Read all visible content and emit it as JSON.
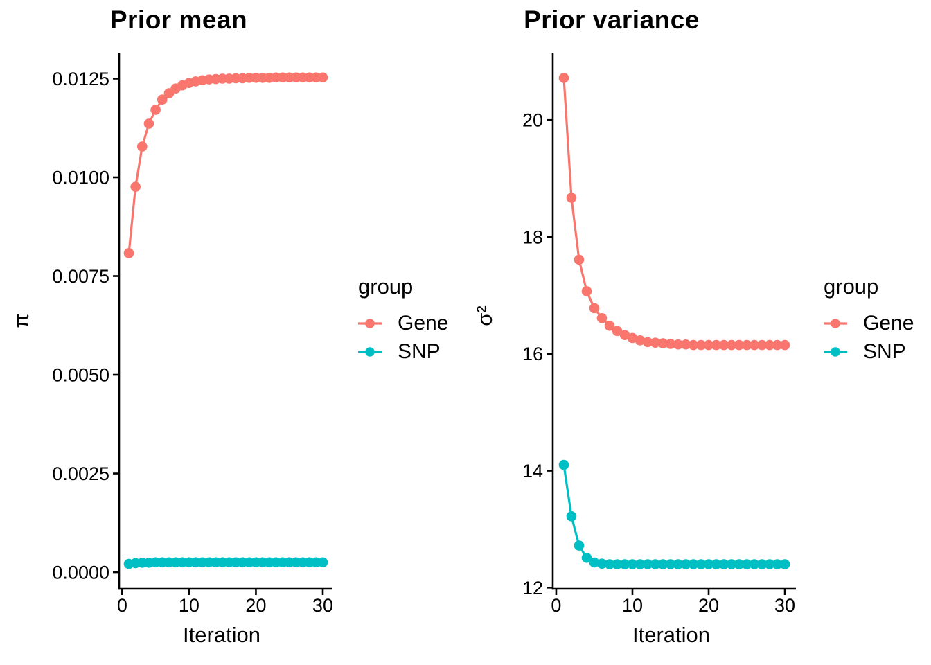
{
  "page": {
    "background": "#ffffff",
    "text_color": "#000000"
  },
  "chart_data": [
    {
      "type": "line",
      "title": "Prior mean",
      "xlabel": "Iteration",
      "ylabel": "π",
      "legend_title": "group",
      "legend_position": "right",
      "grid": false,
      "xlim": [
        -0.45,
        31.45
      ],
      "ylim": [
        -0.00042,
        0.01314
      ],
      "x_ticks": [
        {
          "v": 0,
          "label": "0"
        },
        {
          "v": 10,
          "label": "10"
        },
        {
          "v": 20,
          "label": "20"
        },
        {
          "v": 30,
          "label": "30"
        }
      ],
      "y_ticks": [
        {
          "v": 0.0125,
          "label": "0.0125"
        },
        {
          "v": 0.01,
          "label": "0.0100"
        },
        {
          "v": 0.0075,
          "label": "0.0075"
        },
        {
          "v": 0.005,
          "label": "0.0050"
        },
        {
          "v": 0.0025,
          "label": "0.0025"
        },
        {
          "v": 0.0,
          "label": "0.0000"
        }
      ],
      "series": [
        {
          "name": "Gene",
          "color": "#F8766D",
          "x": [
            1,
            2,
            3,
            4,
            5,
            6,
            7,
            8,
            9,
            10,
            11,
            12,
            13,
            14,
            15,
            16,
            17,
            18,
            19,
            20,
            21,
            22,
            23,
            24,
            25,
            26,
            27,
            28,
            29,
            30
          ],
          "values": [
            0.00808,
            0.00976,
            0.01078,
            0.01136,
            0.01171,
            0.01197,
            0.01213,
            0.01225,
            0.01233,
            0.01239,
            0.01243,
            0.01246,
            0.01248,
            0.01249,
            0.0125,
            0.0125,
            0.01251,
            0.01251,
            0.01252,
            0.01252,
            0.01252,
            0.01252,
            0.01253,
            0.01253,
            0.01253,
            0.01253,
            0.01253,
            0.01253,
            0.01253,
            0.01253
          ]
        },
        {
          "name": "SNP",
          "color": "#00BFC4",
          "x": [
            1,
            2,
            3,
            4,
            5,
            6,
            7,
            8,
            9,
            10,
            11,
            12,
            13,
            14,
            15,
            16,
            17,
            18,
            19,
            20,
            21,
            22,
            23,
            24,
            25,
            26,
            27,
            28,
            29,
            30
          ],
          "values": [
            0.00021,
            0.00023,
            0.00024,
            0.00024,
            0.00025,
            0.00025,
            0.00025,
            0.00025,
            0.00025,
            0.00025,
            0.00025,
            0.00025,
            0.00025,
            0.00025,
            0.00025,
            0.00025,
            0.00025,
            0.00025,
            0.00025,
            0.00025,
            0.00025,
            0.00025,
            0.00025,
            0.00025,
            0.00025,
            0.00025,
            0.00025,
            0.00025,
            0.00025,
            0.00025
          ]
        }
      ]
    },
    {
      "type": "line",
      "title": "Prior variance",
      "xlabel": "Iteration",
      "ylabel": "σ²",
      "legend_title": "group",
      "legend_position": "right",
      "grid": false,
      "xlim": [
        -0.45,
        31.45
      ],
      "ylim": [
        11.98,
        21.14
      ],
      "x_ticks": [
        {
          "v": 0,
          "label": "0"
        },
        {
          "v": 10,
          "label": "10"
        },
        {
          "v": 20,
          "label": "20"
        },
        {
          "v": 30,
          "label": "30"
        }
      ],
      "y_ticks": [
        {
          "v": 20,
          "label": "20"
        },
        {
          "v": 18,
          "label": "18"
        },
        {
          "v": 16,
          "label": "16"
        },
        {
          "v": 14,
          "label": "14"
        },
        {
          "v": 12,
          "label": "12"
        }
      ],
      "series": [
        {
          "name": "Gene",
          "color": "#F8766D",
          "x": [
            1,
            2,
            3,
            4,
            5,
            6,
            7,
            8,
            9,
            10,
            11,
            12,
            13,
            14,
            15,
            16,
            17,
            18,
            19,
            20,
            21,
            22,
            23,
            24,
            25,
            26,
            27,
            28,
            29,
            30
          ],
          "values": [
            20.72,
            18.67,
            17.61,
            17.07,
            16.78,
            16.61,
            16.48,
            16.39,
            16.32,
            16.27,
            16.23,
            16.2,
            16.19,
            16.18,
            16.17,
            16.16,
            16.16,
            16.15,
            16.15,
            16.15,
            16.15,
            16.15,
            16.15,
            16.15,
            16.15,
            16.15,
            16.15,
            16.15,
            16.15,
            16.15
          ]
        },
        {
          "name": "SNP",
          "color": "#00BFC4",
          "x": [
            1,
            2,
            3,
            4,
            5,
            6,
            7,
            8,
            9,
            10,
            11,
            12,
            13,
            14,
            15,
            16,
            17,
            18,
            19,
            20,
            21,
            22,
            23,
            24,
            25,
            26,
            27,
            28,
            29,
            30
          ],
          "values": [
            14.1,
            13.22,
            12.72,
            12.51,
            12.43,
            12.41,
            12.4,
            12.4,
            12.4,
            12.4,
            12.4,
            12.4,
            12.4,
            12.4,
            12.4,
            12.4,
            12.4,
            12.4,
            12.4,
            12.4,
            12.4,
            12.4,
            12.4,
            12.4,
            12.4,
            12.4,
            12.4,
            12.4,
            12.4,
            12.4
          ]
        }
      ]
    }
  ]
}
